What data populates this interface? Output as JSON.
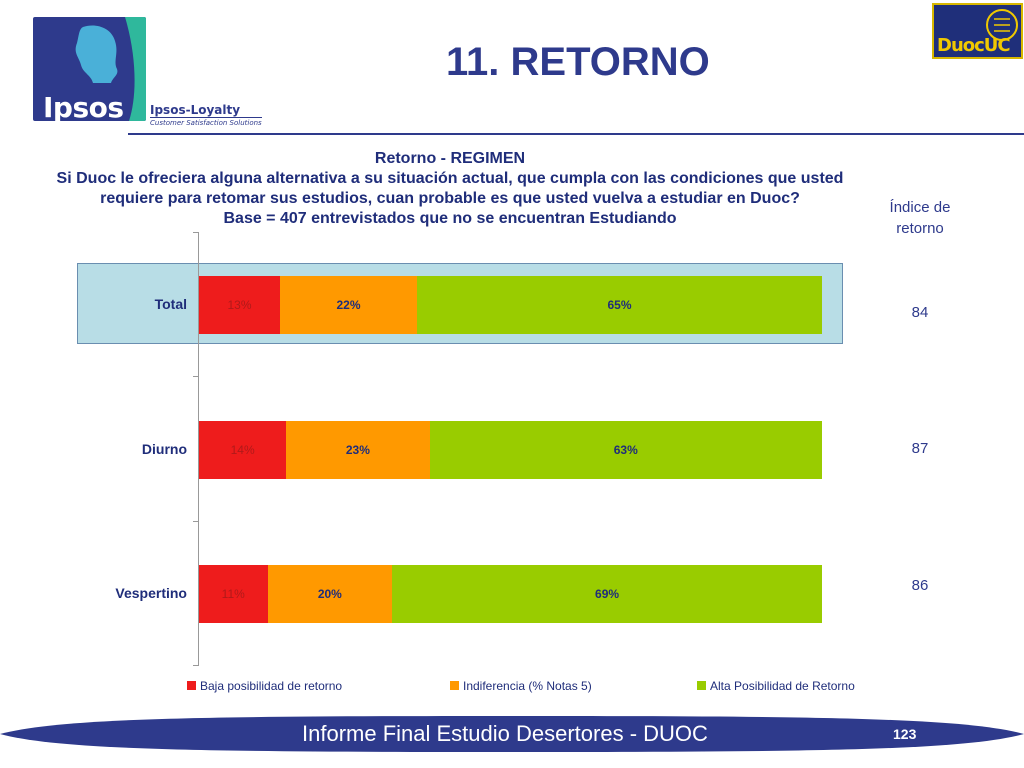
{
  "header": {
    "title": "11. RETORNO",
    "ipsos_logo_text": "Ipsos",
    "loyalty_line1": "Ipsos-Loyalty",
    "loyalty_line2": "Customer Satisfaction Solutions",
    "duoc_logo_text": "DuocUC"
  },
  "chart_title": {
    "line1": "Retorno - REGIMEN",
    "line2": "Si Duoc le ofreciera alguna alternativa a su situación actual, que cumpla con las condiciones que usted",
    "line3": "requiere para retomar sus estudios, cuan probable es que usted vuelva a estudiar en Duoc?",
    "line4": "Base = 407 entrevistados que  no se encuentran Estudiando"
  },
  "index_header": {
    "line1": "Índice de",
    "line2": "retorno"
  },
  "chart_data": {
    "type": "bar",
    "orientation": "horizontal",
    "stacked": true,
    "categories": [
      "Total",
      "Diurno",
      "Vespertino"
    ],
    "series": [
      {
        "name": "Baja posibilidad de retorno",
        "color": "#ee1c1c",
        "values": [
          13,
          14,
          11
        ],
        "labels": [
          "13%",
          "14%",
          "11%"
        ]
      },
      {
        "name": "Indiferencia (% Notas 5)",
        "color": "#ff9900",
        "values": [
          22,
          23,
          20
        ],
        "labels": [
          "22%",
          "23%",
          "20%"
        ]
      },
      {
        "name": "Alta Posibilidad de Retorno",
        "color": "#99cc00",
        "values": [
          65,
          63,
          69
        ],
        "labels": [
          "65%",
          "63%",
          "69%"
        ]
      }
    ],
    "xlim": [
      0,
      100
    ],
    "legend": "bottom",
    "highlight": "Total"
  },
  "index_values": [
    "84",
    "87",
    "86"
  ],
  "footer": {
    "text": "Informe Final Estudio Desertores - DUOC",
    "page_number": "123"
  }
}
